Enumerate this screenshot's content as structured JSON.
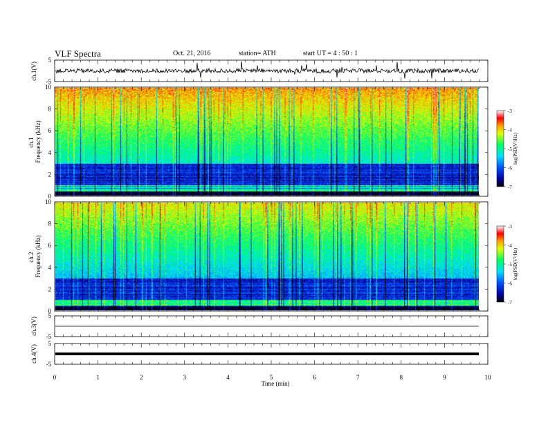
{
  "header": {
    "title": "VLF  Spectra",
    "date": "Oct. 21, 2016",
    "station": "station= ATH",
    "start": "start  UT  =   4  : 50 : 1"
  },
  "chart_data": [
    {
      "type": "line",
      "panel": "ch1-waveform",
      "ylabel": "ch.1(V)",
      "ylim": [
        -5,
        5
      ],
      "yticks": [
        "5",
        "-5"
      ],
      "description_values": {
        "baseline": 0.0,
        "noise_amplitude": 1.0,
        "spike_max": 4.5
      }
    },
    {
      "type": "heatmap",
      "panel": "ch1-spectrogram",
      "ylabel": "ch.1\nFrequency (kHz)",
      "ylim": [
        0,
        10
      ],
      "yticks": [
        "0",
        "2",
        "4",
        "6",
        "8",
        "10"
      ],
      "colorbar": {
        "label": "log(PSD(V²/Hz)",
        "range": [
          -7,
          -3
        ],
        "ticks": [
          "-3",
          "-4",
          "-5",
          "-6",
          "-7"
        ]
      }
    },
    {
      "type": "heatmap",
      "panel": "ch2-spectrogram",
      "ylabel": "ch.2\nFrequency (kHz)",
      "ylim": [
        0,
        10
      ],
      "yticks": [
        "0",
        "2",
        "4",
        "6",
        "8",
        "10"
      ],
      "colorbar": {
        "label": "log(PSD(V²/Hz)",
        "range": [
          -7,
          -3
        ],
        "ticks": [
          "-3",
          "-4",
          "-5",
          "-6",
          "-7"
        ]
      }
    },
    {
      "type": "line",
      "panel": "ch3-waveform",
      "ylabel": "ch.3(V)",
      "ylim": [
        -5,
        5
      ],
      "yticks": [
        "5",
        "-5"
      ],
      "description_values": {
        "level": 0.0
      }
    },
    {
      "type": "line",
      "panel": "ch4-waveform",
      "ylabel": "ch.4(V)",
      "ylim": [
        -5,
        5
      ],
      "yticks": [
        "5",
        "-5"
      ],
      "description_values": {
        "level": 0.0
      }
    }
  ],
  "xaxis": {
    "label": "Time  (min)",
    "range": [
      0,
      10
    ],
    "data_end": 9.8,
    "ticks": [
      "0",
      "1",
      "2",
      "3",
      "4",
      "5",
      "6",
      "7",
      "8",
      "9",
      "10"
    ]
  },
  "colors": {
    "spectro_low": "#000090",
    "spectro_mid": "#00ff80",
    "spectro_high": "#ff0000"
  }
}
